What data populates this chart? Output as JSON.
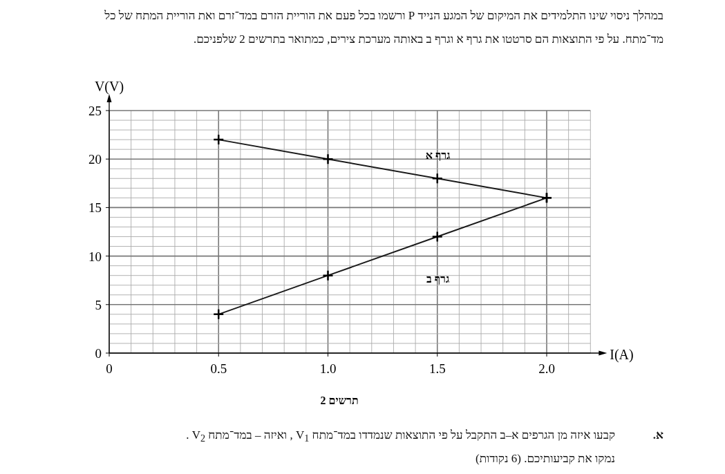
{
  "chart_data": {
    "type": "line",
    "title": "תרשים 2",
    "xlabel": "I(A)",
    "ylabel": "V(V)",
    "x": [
      0.5,
      1.0,
      1.5,
      2.0
    ],
    "series": [
      {
        "name": "גרף א",
        "color": "#1a1a1a",
        "values": [
          22,
          20,
          18,
          16
        ]
      },
      {
        "name": "גרף ב",
        "color": "#1a1a1a",
        "values": [
          4,
          8,
          12,
          16
        ]
      }
    ],
    "xlim": [
      0,
      2.2
    ],
    "ylim": [
      0,
      25
    ],
    "xticks": [
      0,
      0.5,
      {
        "value": 1,
        "label": "1.0"
      },
      1.5,
      {
        "value": 2,
        "label": "2.0"
      }
    ],
    "yticks": [
      0,
      5,
      10,
      15,
      20,
      25
    ],
    "grid": true,
    "marker": "cross",
    "line_style": "solid",
    "annotations": [
      "במהלך ניסוי שינו התלמידים את המיקום של המגע הנייד P ורשמו בכל פעם את הוריית הזרם במד־זרם ואת הוריית המתח של כל מד־מתח. על פי התוצאות הם סרטטו את גרף א וגרף ב באותה מערכת צירים, כמתואר בתרשים 2 שלפניכם.",
      "א.",
      "קבעו איזה מן הגרפים א–ב התקבל על פי התוצאות שנמדדו במד־מתח V$_{1}$ , ואיזה – במד־מתח V$_{2}$ .",
      "נמקו את קביעותיכם. (6 נקודות)"
    ]
  }
}
